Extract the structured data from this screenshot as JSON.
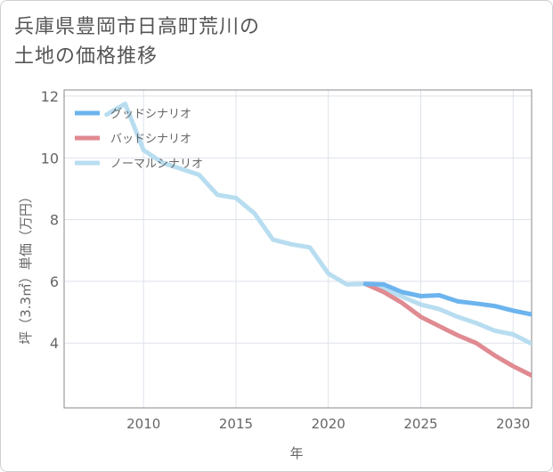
{
  "title_line1": "兵庫県豊岡市日高町荒川の",
  "title_line2": "土地の価格推移",
  "chart_data": {
    "type": "line",
    "xlabel": "年",
    "ylabel": "坪（3.3㎡）単価（万円）",
    "xlim": [
      2005.7,
      2031
    ],
    "ylim": [
      1.9,
      12.2
    ],
    "xticks": [
      2010,
      2015,
      2020,
      2025,
      2030
    ],
    "yticks": [
      4,
      6,
      8,
      10,
      12
    ],
    "grid": true,
    "legend_position": "top-left",
    "series": [
      {
        "name": "グッドシナリオ",
        "color": "#6cb4ee",
        "x": [
          2022,
          2023,
          2024,
          2025,
          2026,
          2027,
          2028,
          2029,
          2030,
          2031
        ],
        "y": [
          5.92,
          5.9,
          5.65,
          5.52,
          5.55,
          5.35,
          5.28,
          5.2,
          5.05,
          4.93
        ]
      },
      {
        "name": "バッドシナリオ",
        "color": "#e08a91",
        "x": [
          2022,
          2023,
          2024,
          2025,
          2026,
          2027,
          2028,
          2029,
          2030,
          2031
        ],
        "y": [
          5.92,
          5.65,
          5.3,
          4.85,
          4.55,
          4.25,
          4.0,
          3.6,
          3.25,
          2.95
        ]
      },
      {
        "name": "ノーマルシナリオ",
        "color": "#b8ddf0",
        "x": [
          2008,
          2009,
          2010,
          2011,
          2012,
          2013,
          2014,
          2015,
          2016,
          2017,
          2018,
          2019,
          2020,
          2021,
          2022,
          2023,
          2024,
          2025,
          2026,
          2027,
          2028,
          2029,
          2030,
          2031
        ],
        "y": [
          11.4,
          11.75,
          10.25,
          9.85,
          9.65,
          9.45,
          8.8,
          8.7,
          8.2,
          7.35,
          7.2,
          7.1,
          6.25,
          5.9,
          5.92,
          5.75,
          5.5,
          5.25,
          5.1,
          4.85,
          4.65,
          4.4,
          4.28,
          3.98
        ]
      }
    ]
  }
}
